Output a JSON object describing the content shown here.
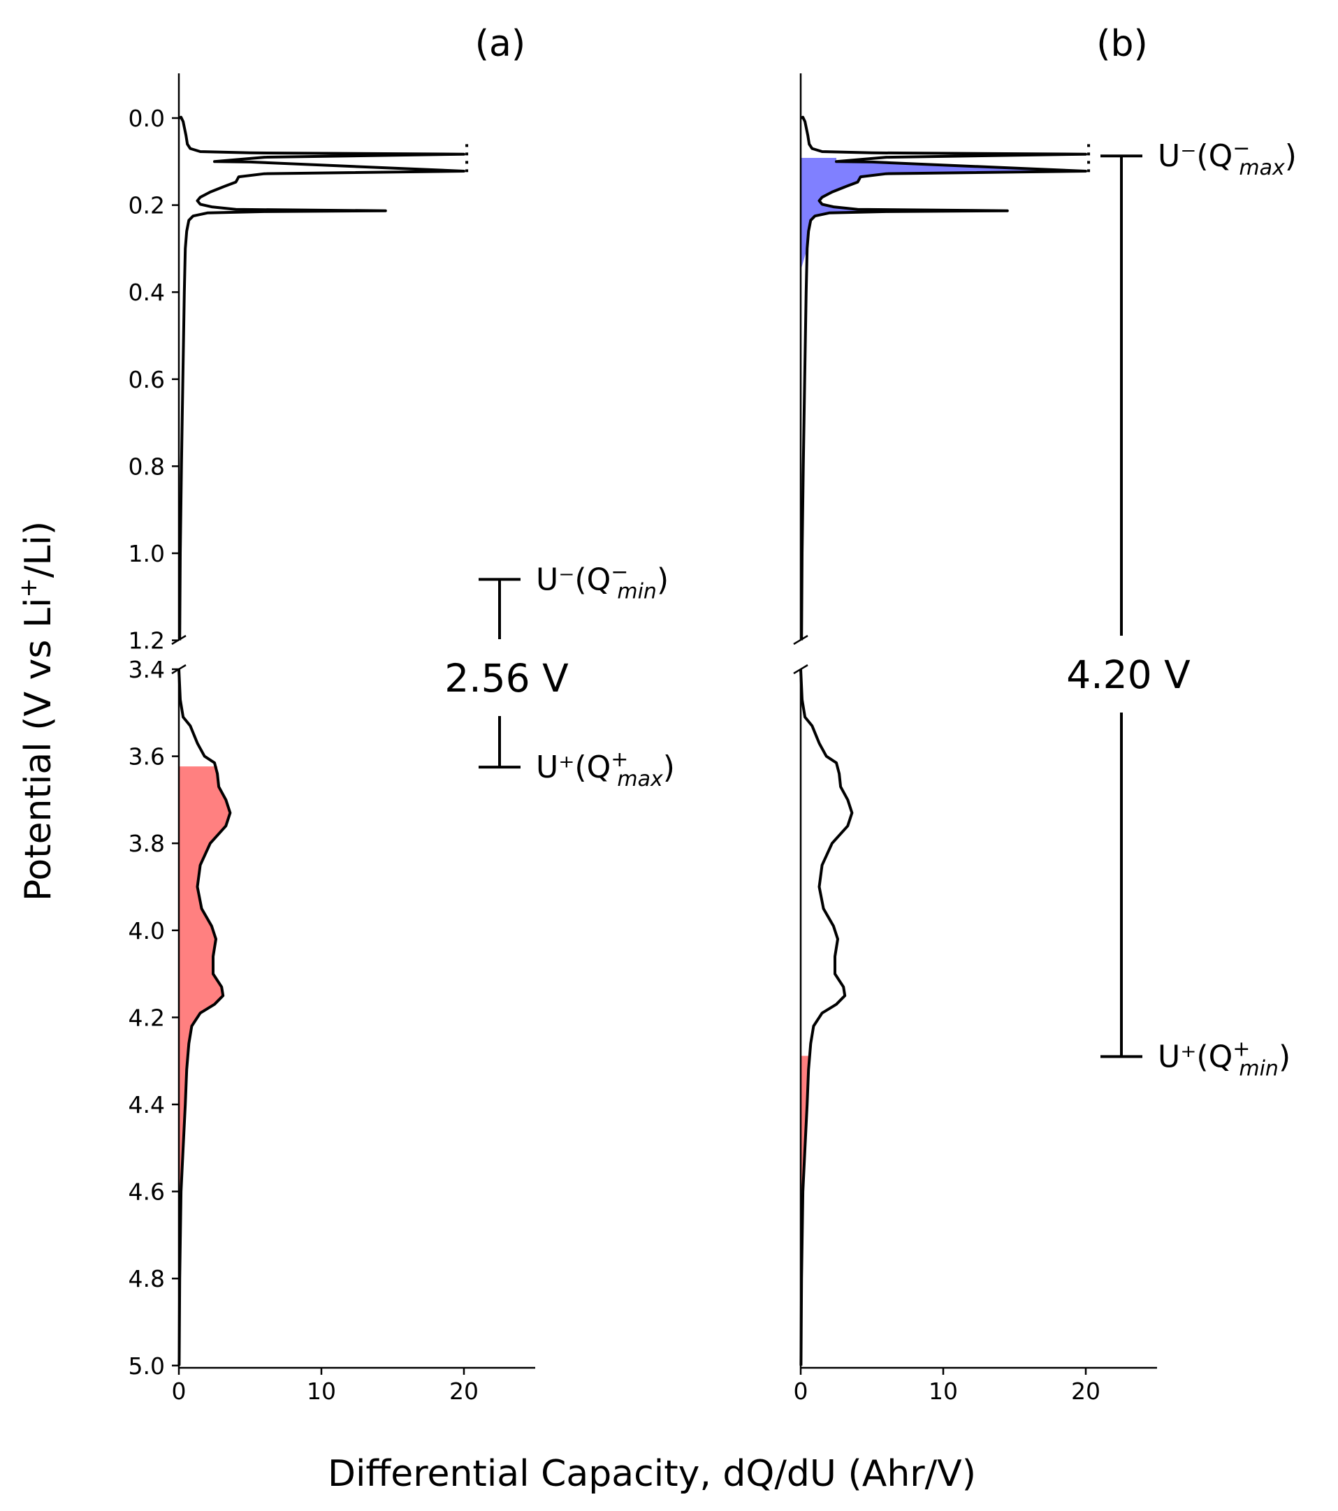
{
  "chart_data": [
    {
      "type": "line",
      "title": "(a)",
      "xlabel": "Differential Capacity, dQ/dU (Ahr/V)",
      "ylabel": "Potential (V vs Li⁺/Li)",
      "xlim": [
        0,
        25
      ],
      "xticks": [
        0,
        10,
        20
      ],
      "xtick_labels": [
        "0",
        "10",
        "20"
      ],
      "y_axis": "inverted, broken between 1.2 and 3.4",
      "ylim_upper_segment": [
        -0.1,
        1.2
      ],
      "ylim_lower_segment": [
        3.4,
        5.0
      ],
      "yticks": [
        0.0,
        0.2,
        0.4,
        0.6,
        0.8,
        1.0,
        1.2,
        3.4,
        3.6,
        3.8,
        4.0,
        4.2,
        4.4,
        4.6,
        4.8,
        5.0
      ],
      "ytick_labels": [
        "0.0",
        "0.2",
        "0.4",
        "0.6",
        "0.8",
        "1.0",
        "1.2",
        "3.4",
        "3.6",
        "3.8",
        "4.0",
        "4.2",
        "4.4",
        "4.6",
        "4.8",
        "5.0"
      ],
      "series": [
        {
          "role": "negative electrode dQ/dU curve",
          "color": "#000000",
          "points": [
            [
              0.0,
              0.0
            ],
            [
              0.15,
              -0.002
            ],
            [
              0.3,
              0.008
            ],
            [
              0.5,
              0.04
            ],
            [
              0.6,
              0.06
            ],
            [
              0.8,
              0.07
            ],
            [
              1.5,
              0.077
            ],
            [
              5,
              0.08
            ],
            [
              20,
              0.083
            ],
            [
              6,
              0.09
            ],
            [
              2.5,
              0.1
            ],
            [
              5,
              0.101
            ],
            [
              20,
              0.122
            ],
            [
              6,
              0.128
            ],
            [
              4.2,
              0.135
            ],
            [
              4.0,
              0.147
            ],
            [
              3.2,
              0.157
            ],
            [
              2.2,
              0.17
            ],
            [
              1.5,
              0.182
            ],
            [
              1.3,
              0.19
            ],
            [
              1.5,
              0.198
            ],
            [
              2.3,
              0.204
            ],
            [
              4,
              0.21
            ],
            [
              14.5,
              0.213
            ],
            [
              6,
              0.215
            ],
            [
              2,
              0.218
            ],
            [
              1.0,
              0.225
            ],
            [
              0.7,
              0.235
            ],
            [
              0.55,
              0.26
            ],
            [
              0.45,
              0.3
            ],
            [
              0.38,
              0.4
            ],
            [
              0.28,
              0.6
            ],
            [
              0.18,
              0.8
            ],
            [
              0.1,
              1.0
            ],
            [
              0.06,
              1.2
            ]
          ]
        },
        {
          "role": "positive electrode dQ/dU curve",
          "color": "#000000",
          "points": [
            [
              0.0,
              3.4
            ],
            [
              0.1,
              3.47
            ],
            [
              0.3,
              3.51
            ],
            [
              0.8,
              3.53
            ],
            [
              1.3,
              3.57
            ],
            [
              1.8,
              3.6
            ],
            [
              2.5,
              3.615
            ],
            [
              2.7,
              3.64
            ],
            [
              2.8,
              3.67
            ],
            [
              3.3,
              3.7
            ],
            [
              3.6,
              3.73
            ],
            [
              3.3,
              3.76
            ],
            [
              2.2,
              3.8
            ],
            [
              1.5,
              3.85
            ],
            [
              1.3,
              3.9
            ],
            [
              1.6,
              3.95
            ],
            [
              2.3,
              3.99
            ],
            [
              2.6,
              4.02
            ],
            [
              2.4,
              4.06
            ],
            [
              2.4,
              4.1
            ],
            [
              3.0,
              4.13
            ],
            [
              3.1,
              4.15
            ],
            [
              2.5,
              4.17
            ],
            [
              1.5,
              4.19
            ],
            [
              0.9,
              4.22
            ],
            [
              0.7,
              4.26
            ],
            [
              0.55,
              4.32
            ],
            [
              0.45,
              4.4
            ],
            [
              0.3,
              4.5
            ],
            [
              0.15,
              4.6
            ],
            [
              0.06,
              4.8
            ],
            [
              0.02,
              5.0
            ]
          ]
        }
      ],
      "shaded_regions": [
        {
          "color": "#ff8080",
          "y_range": [
            3.625,
            4.6
          ],
          "note": "area under positive curve"
        }
      ],
      "annotations": {
        "voltage_label": "2.56 V",
        "upper_label": {
          "main": "U⁻(Q",
          "sup": "−",
          "sub": "min",
          "close": ")"
        },
        "lower_label": {
          "main": "U⁺(Q",
          "sup": "+",
          "sub": "max",
          "close": ")"
        },
        "upper_bracket_y": 1.06,
        "lower_bracket_y": 3.625
      }
    },
    {
      "type": "line",
      "title": "(b)",
      "xlabel": "Differential Capacity, dQ/dU (Ahr/V)",
      "ylabel": "Potential (V vs Li⁺/Li)",
      "xlim": [
        0,
        25
      ],
      "xticks": [
        0,
        10,
        20
      ],
      "xtick_labels": [
        "0",
        "10",
        "20"
      ],
      "y_axis": "inverted, broken between 1.2 and 3.4, shared with (a)",
      "series": [
        {
          "role": "negative electrode dQ/dU curve",
          "color": "#000000",
          "same_as": "(a)"
        },
        {
          "role": "positive electrode dQ/dU curve",
          "color": "#000000",
          "same_as": "(a)"
        }
      ],
      "shaded_regions": [
        {
          "color": "#8080ff",
          "y_range": [
            0.093,
            0.35
          ],
          "note": "area under negative curve"
        },
        {
          "color": "#ff8080",
          "y_range": [
            4.29,
            4.6
          ],
          "note": "area under positive curve"
        }
      ],
      "annotations": {
        "voltage_label": "4.20 V",
        "upper_label": {
          "main": "U⁻(Q",
          "sup": "−",
          "sub": "max",
          "close": ")"
        },
        "lower_label": {
          "main": "U⁺(Q",
          "sup": "+",
          "sub": "min",
          "close": ")"
        },
        "upper_bracket_y": 0.087,
        "lower_bracket_y": 4.29
      }
    }
  ],
  "labels": {
    "ylabel_prefix": "Potential (V vs Li",
    "ylabel_sup": "+",
    "ylabel_suffix": "/Li)",
    "xlabel": "Differential Capacity, dQ/dU (Ahr/V)"
  },
  "colors": {
    "line": "#000000",
    "positive_fill": "#ff8080",
    "negative_fill": "#8080ff"
  }
}
